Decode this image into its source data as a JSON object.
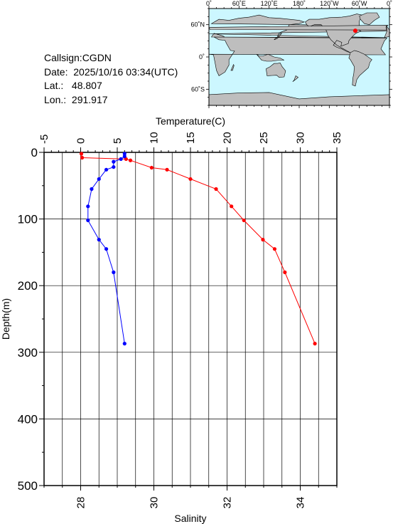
{
  "station": {
    "callsign": "Callsign:CGDN",
    "date": "Date:  2025/10/16 03:34(UTC)",
    "lat": "Lat.:   48.807",
    "lon": "Lon.:  291.917"
  },
  "map": {
    "top_labels": [
      "0˚",
      "60˚E",
      "120˚E",
      "180˚",
      "120˚W",
      "60˚W",
      "0˚"
    ],
    "left_labels": [
      "60˚N",
      "0˚",
      "60˚S"
    ],
    "ocean_color": "#ccf7ff",
    "land_color": "#bebebe",
    "marker_color": "#ff0000",
    "marker_lon": 291.917,
    "marker_lat": 48.807
  },
  "chart_data": {
    "type": "line",
    "y_axis": {
      "label": "Depth(m)",
      "range": [
        0,
        500
      ],
      "ticks": [
        0,
        100,
        200,
        300,
        400,
        500
      ],
      "reversed": true
    },
    "top_axis": {
      "label": "Temperature(C)",
      "range": [
        -5,
        35
      ],
      "ticks": [
        -5,
        0,
        5,
        10,
        15,
        20,
        25,
        30,
        35
      ]
    },
    "bottom_axis": {
      "label": "Salinity",
      "range": [
        27,
        35
      ],
      "ticks": [
        28,
        30,
        32,
        34
      ]
    },
    "grid": true,
    "series": [
      {
        "axis": "temperature",
        "color": "#ff0000",
        "points": [
          [
            0.1,
            2
          ],
          [
            0.2,
            8
          ],
          [
            6.2,
            10
          ],
          [
            6.8,
            12
          ],
          [
            9.7,
            23
          ],
          [
            11.8,
            26
          ],
          [
            15.0,
            40
          ],
          [
            18.5,
            55
          ],
          [
            20.6,
            81
          ],
          [
            22.3,
            102
          ],
          [
            24.9,
            131
          ],
          [
            26.5,
            145
          ],
          [
            27.9,
            180
          ],
          [
            32.0,
            287
          ]
        ]
      },
      {
        "axis": "salinity",
        "color": "#0000ff",
        "points": [
          [
            29.2,
            2
          ],
          [
            29.2,
            6
          ],
          [
            29.1,
            10
          ],
          [
            28.9,
            14
          ],
          [
            28.9,
            22
          ],
          [
            28.7,
            26
          ],
          [
            28.5,
            40
          ],
          [
            28.3,
            55
          ],
          [
            28.2,
            81
          ],
          [
            28.2,
            102
          ],
          [
            28.5,
            131
          ],
          [
            28.7,
            145
          ],
          [
            28.9,
            180
          ],
          [
            29.2,
            287
          ]
        ]
      }
    ]
  }
}
